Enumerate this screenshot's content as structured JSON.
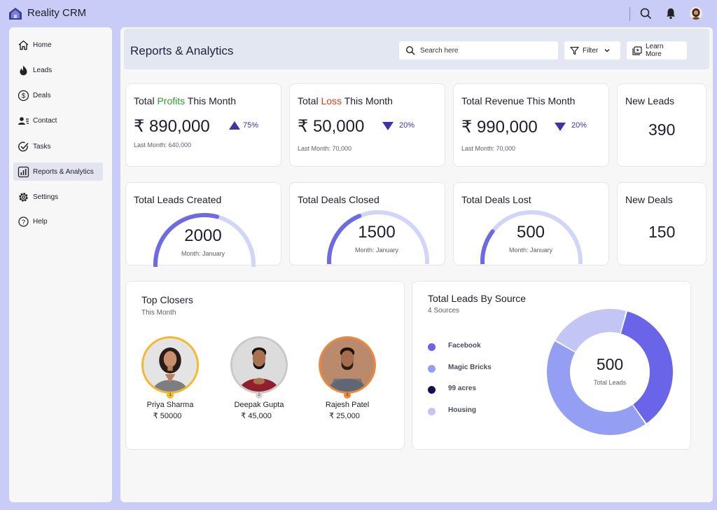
{
  "app": {
    "title": "Reality CRM"
  },
  "sidebar": {
    "items": [
      {
        "label": "Home",
        "icon": "home-icon"
      },
      {
        "label": "Leads",
        "icon": "flame-icon"
      },
      {
        "label": "Deals",
        "icon": "dollar-icon"
      },
      {
        "label": "Contact",
        "icon": "contacts-icon"
      },
      {
        "label": "Tasks",
        "icon": "task-check-icon"
      },
      {
        "label": "Reports & Analytics",
        "icon": "bar-chart-icon",
        "active": true
      },
      {
        "label": "Settings",
        "icon": "gear-icon"
      },
      {
        "label": "Help",
        "icon": "help-icon"
      }
    ]
  },
  "header": {
    "title": "Reports & Analytics",
    "search_placeholder": "Search here",
    "filter_label": "Filter",
    "learn_more_label": "Learn More"
  },
  "stats": {
    "profit": {
      "prefix": "Total ",
      "highlight": "Profits",
      "suffix": " This Month",
      "value": "₹ 890,000",
      "change": "75%",
      "direction": "up",
      "last_month": "Last Month: 640,000"
    },
    "loss": {
      "prefix": "Total ",
      "highlight": "Loss",
      "suffix": " This Month",
      "value": "₹ 50,000",
      "change": "20%",
      "direction": "down",
      "last_month": "Last Month: 70,000"
    },
    "revenue": {
      "title": "Total Revenue This Month",
      "value": "₹ 990,000",
      "change": "20%",
      "direction": "down",
      "last_month": "Last Month: 70,000"
    },
    "new_leads": {
      "title": "New Leads",
      "value": "390"
    },
    "new_deals": {
      "title": "New Deals",
      "value": "150"
    }
  },
  "gauges": [
    {
      "title": "Total Leads Created",
      "value": "2000",
      "sub": "Month: January",
      "fraction": 0.58
    },
    {
      "title": "Total Deals Closed",
      "value": "1500",
      "sub": "Month: January",
      "fraction": 0.38
    },
    {
      "title": "Total Deals Lost",
      "value": "500",
      "sub": "Month: January",
      "fraction": 0.22
    }
  ],
  "top_closers": {
    "title": "Top Closers",
    "subtitle": "This Month",
    "people": [
      {
        "rank": "1",
        "name": "Priya Sharma",
        "amount": "₹ 50000",
        "ring": "#f5b82a"
      },
      {
        "rank": "2",
        "name": "Deepak Gupta",
        "amount": "₹ 45,000",
        "ring": "#c9c9c9"
      },
      {
        "rank": "3",
        "name": "Rajesh Patel",
        "amount": "₹ 25,000",
        "ring": "#ec8a3a"
      }
    ]
  },
  "lead_sources": {
    "title": "Total Leads By Source",
    "subtitle": "4 Sources",
    "total": "500",
    "total_label": "Total Leads",
    "sources": [
      {
        "name": "Facebook",
        "color": "#6a64e8"
      },
      {
        "name": "Magic Bricks",
        "color": "#949ef2"
      },
      {
        "name": "99 acres",
        "color": "#0f1052"
      },
      {
        "name": "Housing",
        "color": "#c3c6f4"
      }
    ]
  },
  "chart_data": {
    "type": "pie",
    "title": "Total Leads By Source",
    "categories": [
      "Facebook",
      "Magic Bricks",
      "99 acres",
      "Housing"
    ],
    "values": [
      0.36,
      0.43,
      0.0,
      0.21
    ],
    "note_total": "500"
  }
}
